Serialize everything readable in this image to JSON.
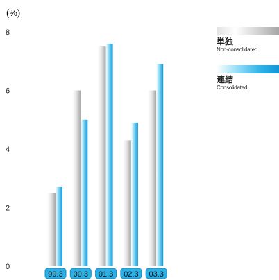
{
  "chart_data": {
    "type": "bar",
    "unit_label": "(%)",
    "categories": [
      "99.3",
      "00.3",
      "01.3",
      "02.3",
      "03.3"
    ],
    "series": [
      {
        "name": "単独",
        "name_en": "Non-consolidated",
        "values": [
          2.5,
          6.0,
          7.5,
          4.3,
          6.0
        ]
      },
      {
        "name": "連結",
        "name_en": "Consolidated",
        "values": [
          2.7,
          5.0,
          7.6,
          4.9,
          6.9
        ]
      }
    ],
    "ylim": [
      0,
      8
    ],
    "yticks": [
      "0",
      "2",
      "4",
      "6",
      "8"
    ],
    "grid": false,
    "legend_position": "top-right",
    "colors": {
      "series0_light": "#ffffff",
      "series0_dark": "#a6a6a6",
      "series1_light": "#ffffff",
      "series1_dark": "#0f96d8",
      "badge_fill": "#2bb0e6",
      "badge_stroke": "#1a8cc4"
    }
  }
}
